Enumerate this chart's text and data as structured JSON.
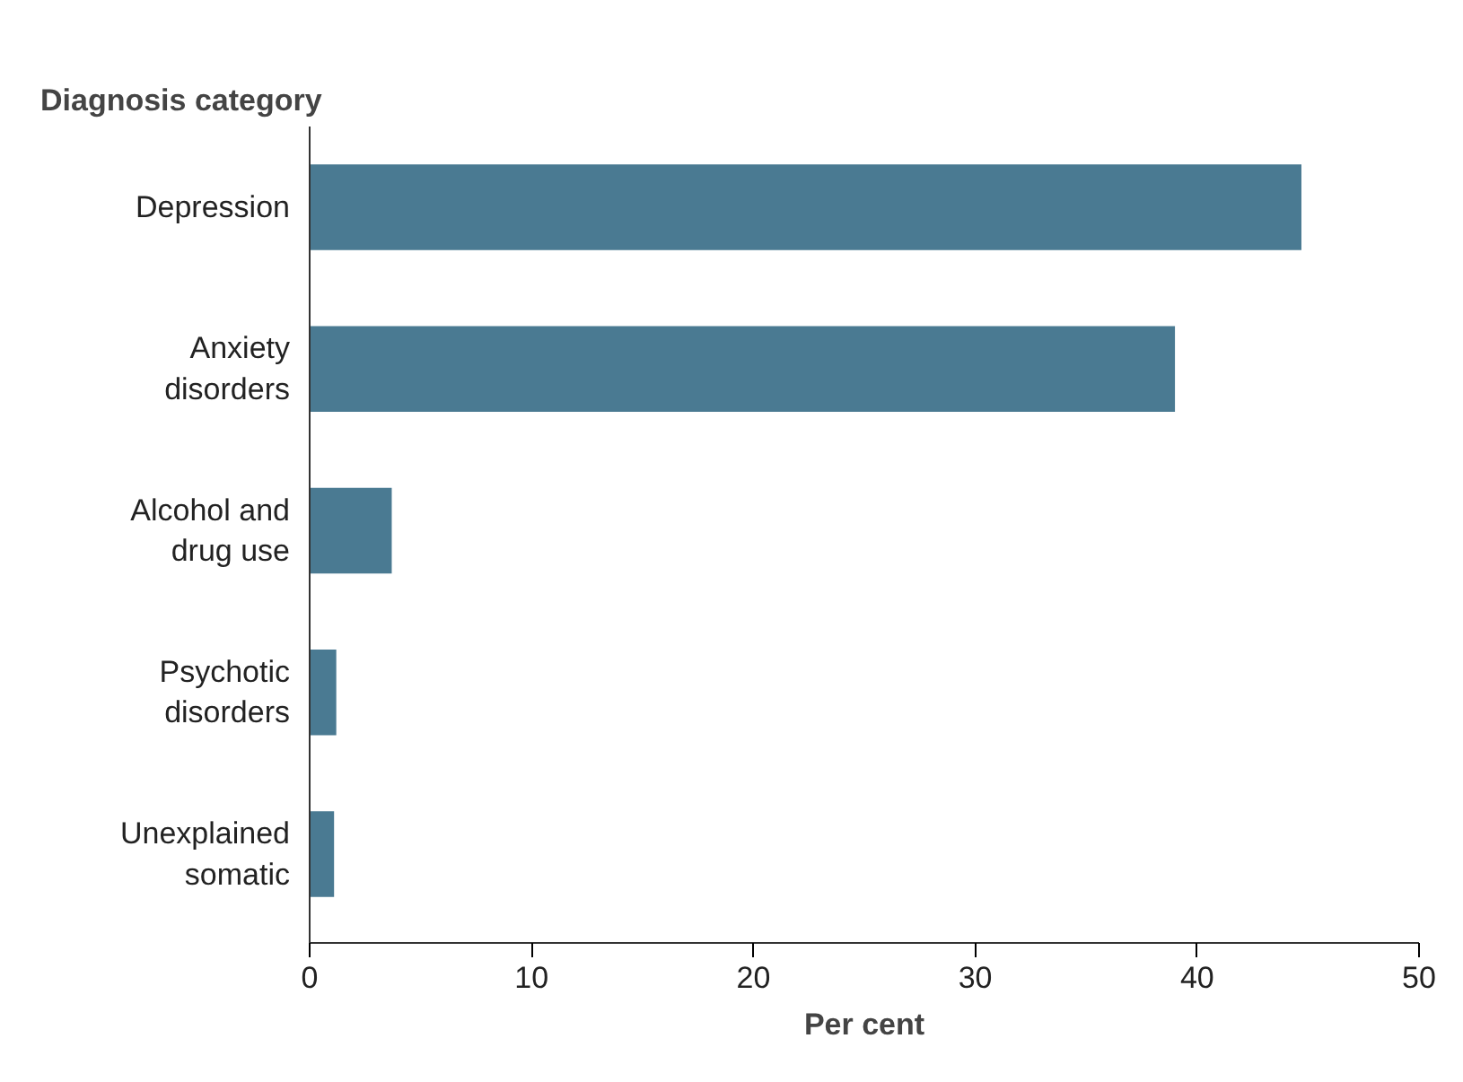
{
  "chart_data": {
    "type": "bar",
    "orientation": "horizontal",
    "title": "Diagnosis category",
    "xlabel": "Per cent",
    "categories": [
      "Depression",
      "Anxiety\ndisorders",
      "Alcohol and\ndrug use",
      "Psychotic\ndisorders",
      "Unexplained\nsomatic"
    ],
    "values": [
      44.7,
      39.0,
      3.7,
      1.2,
      1.1
    ],
    "color": "#4a7a92",
    "xlim": [
      0,
      50
    ],
    "xticks": [
      0,
      10,
      20,
      30,
      40,
      50
    ],
    "grid": false
  }
}
